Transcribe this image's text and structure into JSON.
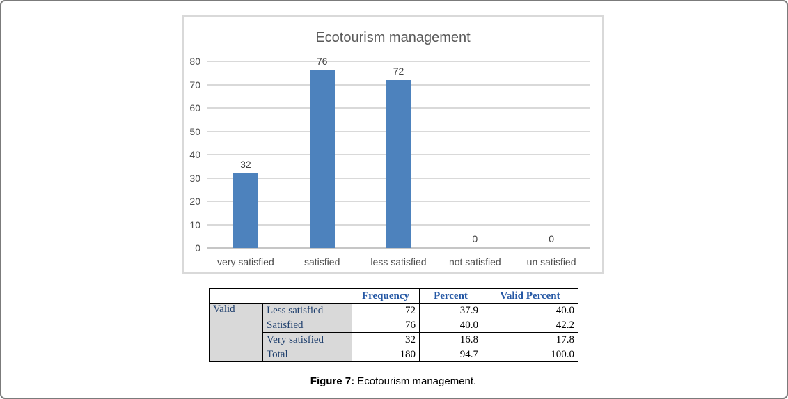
{
  "chart_data": {
    "type": "bar",
    "title": "Ecotourism management",
    "categories": [
      "very satisfied",
      "satisfied",
      "less satisfied",
      "not satisfied",
      "un satisfied"
    ],
    "values": [
      32,
      76,
      72,
      0,
      0
    ],
    "data_labels": [
      "32",
      "76",
      "72",
      "0",
      "0"
    ],
    "xlabel": "",
    "ylabel": "",
    "ylim": [
      0,
      80
    ],
    "ytick_step": 10,
    "grid": true,
    "legend": "none",
    "bar_color": "#4d82bd"
  },
  "table": {
    "headers": [
      "Frequency",
      "Percent",
      "Valid Percent"
    ],
    "group_label": "Valid",
    "rows": [
      {
        "label": "Less satisfied",
        "frequency": "72",
        "percent": "37.9",
        "valid_percent": "40.0"
      },
      {
        "label": "Satisfied",
        "frequency": "76",
        "percent": "40.0",
        "valid_percent": "42.2"
      },
      {
        "label": "Very satisfied",
        "frequency": "32",
        "percent": "16.8",
        "valid_percent": "17.8"
      },
      {
        "label": "Total",
        "frequency": "180",
        "percent": "94.7",
        "valid_percent": "100.0"
      }
    ]
  },
  "caption": {
    "label": "Figure 7:",
    "text": " Ecotourism management."
  },
  "colors": {
    "bar": "#4d82bd",
    "gridline": "#d9d9d9",
    "chart_text": "#595959",
    "table_header_text": "#2457a4",
    "table_label_text": "#20406e",
    "table_label_bg": "#d9d9d9",
    "outer_border": "#7b7b7b"
  }
}
